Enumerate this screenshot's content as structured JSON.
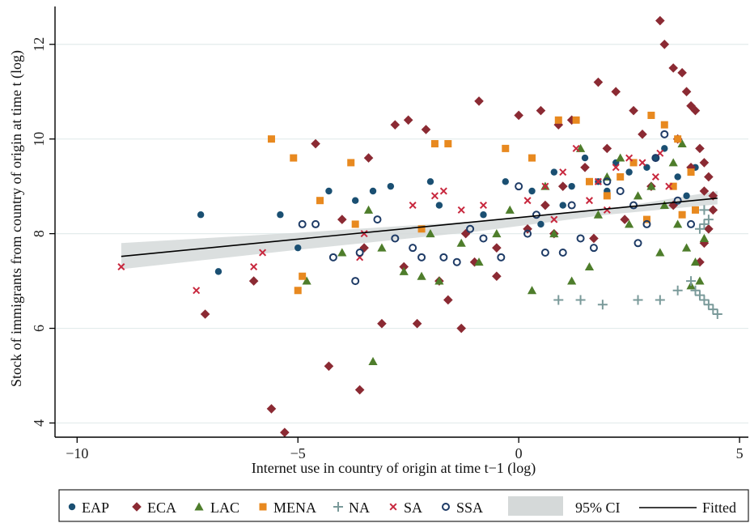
{
  "chart_data": {
    "type": "scatter",
    "title": "",
    "xlabel": "Internet use in country of origin at time t−1 (log)",
    "ylabel": "Stock of immigrants from country of origin at time t (log)",
    "xlim": [
      -10.5,
      5.2
    ],
    "ylim": [
      3.7,
      12.8
    ],
    "x_ticks": [
      -10,
      -5,
      0,
      5
    ],
    "x_tick_labels": [
      "−10",
      "−5",
      "0",
      "5"
    ],
    "y_ticks": [
      4,
      6,
      8,
      10,
      12
    ],
    "y_tick_labels": [
      "4",
      "6",
      "8",
      "10",
      "12"
    ],
    "grid": "horizontal",
    "legend_position": "bottom",
    "colors": {
      "EAP": "#1a4f72",
      "ECA": "#8b2a33",
      "LAC": "#4e7d2b",
      "MENA": "#e8891f",
      "NA": "#7a9a9a",
      "SA": "#c8283e",
      "SSA": "#1e3b66",
      "CI": "#d5d9d9",
      "Fitted": "#000000"
    },
    "series": [
      {
        "name": "EAP",
        "marker": "circle-filled",
        "points": [
          [
            -7.2,
            8.4
          ],
          [
            -6.8,
            7.2
          ],
          [
            -5.4,
            8.4
          ],
          [
            -4.3,
            8.9
          ],
          [
            -3.7,
            8.7
          ],
          [
            -3.3,
            8.9
          ],
          [
            -2.9,
            9.0
          ],
          [
            -2.0,
            9.1
          ],
          [
            -1.8,
            8.6
          ],
          [
            -0.3,
            9.1
          ],
          [
            0.3,
            8.9
          ],
          [
            0.8,
            9.3
          ],
          [
            1.2,
            9.0
          ],
          [
            1.5,
            9.6
          ],
          [
            1.8,
            9.1
          ],
          [
            2.2,
            9.5
          ],
          [
            2.5,
            9.3
          ],
          [
            2.9,
            9.4
          ],
          [
            3.3,
            9.8
          ],
          [
            3.6,
            9.2
          ],
          [
            4.0,
            9.4
          ],
          [
            1.0,
            8.6
          ],
          [
            2.0,
            8.9
          ],
          [
            -5.0,
            7.7
          ],
          [
            3.1,
            9.6
          ],
          [
            3.8,
            8.8
          ],
          [
            -0.8,
            8.4
          ],
          [
            0.5,
            8.2
          ]
        ]
      },
      {
        "name": "ECA",
        "marker": "diamond",
        "points": [
          [
            -7.1,
            6.3
          ],
          [
            -5.6,
            4.3
          ],
          [
            -5.3,
            3.8
          ],
          [
            -4.6,
            9.9
          ],
          [
            -4.3,
            5.2
          ],
          [
            -3.6,
            4.7
          ],
          [
            -3.4,
            9.6
          ],
          [
            -3.1,
            6.1
          ],
          [
            -2.8,
            10.3
          ],
          [
            -2.5,
            10.4
          ],
          [
            -2.3,
            6.1
          ],
          [
            -2.1,
            10.2
          ],
          [
            -1.6,
            6.6
          ],
          [
            -1.3,
            6.0
          ],
          [
            -1.2,
            8.0
          ],
          [
            -0.9,
            10.8
          ],
          [
            -0.5,
            7.1
          ],
          [
            0.0,
            10.5
          ],
          [
            0.5,
            10.6
          ],
          [
            0.9,
            10.3
          ],
          [
            1.2,
            10.4
          ],
          [
            1.8,
            11.2
          ],
          [
            2.2,
            11.0
          ],
          [
            2.6,
            10.6
          ],
          [
            3.2,
            12.5
          ],
          [
            3.3,
            12.0
          ],
          [
            3.5,
            11.5
          ],
          [
            3.7,
            11.4
          ],
          [
            3.8,
            11.0
          ],
          [
            3.9,
            10.7
          ],
          [
            4.0,
            10.6
          ],
          [
            4.1,
            9.8
          ],
          [
            4.2,
            9.5
          ],
          [
            4.3,
            9.2
          ],
          [
            4.4,
            8.8
          ],
          [
            4.4,
            8.5
          ],
          [
            4.3,
            8.1
          ],
          [
            4.2,
            7.8
          ],
          [
            4.1,
            7.4
          ],
          [
            2.8,
            10.1
          ],
          [
            2.0,
            9.8
          ],
          [
            1.5,
            9.4
          ],
          [
            1.0,
            9.0
          ],
          [
            0.6,
            8.6
          ],
          [
            0.2,
            8.1
          ],
          [
            -0.5,
            7.7
          ],
          [
            -1.0,
            7.4
          ],
          [
            -1.8,
            7.0
          ],
          [
            -2.6,
            7.3
          ],
          [
            -3.5,
            7.7
          ],
          [
            3.0,
            9.0
          ],
          [
            3.5,
            8.6
          ],
          [
            3.9,
            9.4
          ],
          [
            4.2,
            8.9
          ],
          [
            3.6,
            10.0
          ],
          [
            2.4,
            8.3
          ],
          [
            1.7,
            7.9
          ],
          [
            -4.0,
            8.3
          ],
          [
            -6.0,
            7.0
          ],
          [
            0.8,
            8.0
          ]
        ]
      },
      {
        "name": "LAC",
        "marker": "triangle",
        "points": [
          [
            -4.8,
            7.0
          ],
          [
            -3.4,
            8.5
          ],
          [
            -3.3,
            5.3
          ],
          [
            -3.1,
            7.7
          ],
          [
            -2.6,
            7.2
          ],
          [
            -2.2,
            7.1
          ],
          [
            -1.8,
            7.0
          ],
          [
            -1.3,
            7.8
          ],
          [
            -0.9,
            7.4
          ],
          [
            -0.5,
            8.0
          ],
          [
            0.3,
            6.8
          ],
          [
            0.8,
            8.0
          ],
          [
            1.2,
            7.0
          ],
          [
            1.6,
            7.3
          ],
          [
            2.0,
            9.2
          ],
          [
            2.3,
            9.6
          ],
          [
            2.7,
            8.8
          ],
          [
            3.0,
            9.0
          ],
          [
            3.3,
            8.6
          ],
          [
            3.6,
            8.2
          ],
          [
            3.8,
            7.7
          ],
          [
            4.0,
            7.4
          ],
          [
            4.1,
            7.0
          ],
          [
            3.9,
            6.9
          ],
          [
            3.5,
            9.5
          ],
          [
            2.5,
            8.2
          ],
          [
            1.8,
            8.4
          ],
          [
            -0.2,
            8.5
          ],
          [
            -2.0,
            8.0
          ],
          [
            -4.0,
            7.6
          ],
          [
            0.6,
            9.0
          ],
          [
            1.4,
            9.8
          ],
          [
            3.7,
            9.9
          ],
          [
            4.2,
            7.9
          ],
          [
            3.2,
            7.6
          ]
        ]
      },
      {
        "name": "MENA",
        "marker": "square",
        "points": [
          [
            -5.6,
            10.0
          ],
          [
            -5.1,
            9.6
          ],
          [
            -5.0,
            6.8
          ],
          [
            -4.9,
            7.1
          ],
          [
            -4.5,
            8.7
          ],
          [
            -3.8,
            9.5
          ],
          [
            -3.7,
            8.2
          ],
          [
            -2.2,
            8.1
          ],
          [
            -1.9,
            9.9
          ],
          [
            -1.6,
            9.9
          ],
          [
            -0.3,
            9.8
          ],
          [
            0.3,
            9.6
          ],
          [
            0.9,
            10.4
          ],
          [
            1.3,
            10.4
          ],
          [
            1.6,
            9.1
          ],
          [
            2.0,
            8.8
          ],
          [
            2.3,
            9.2
          ],
          [
            2.6,
            9.5
          ],
          [
            3.0,
            10.5
          ],
          [
            3.3,
            10.3
          ],
          [
            3.6,
            10.0
          ],
          [
            3.9,
            9.3
          ],
          [
            4.0,
            8.5
          ],
          [
            3.5,
            9.0
          ],
          [
            2.9,
            8.3
          ],
          [
            3.7,
            8.4
          ]
        ]
      },
      {
        "name": "NA",
        "marker": "plus",
        "points": [
          [
            0.9,
            6.6
          ],
          [
            1.4,
            6.6
          ],
          [
            1.9,
            6.5
          ],
          [
            2.7,
            6.6
          ],
          [
            3.2,
            6.6
          ],
          [
            3.6,
            6.8
          ],
          [
            3.9,
            7.0
          ],
          [
            4.0,
            6.8
          ],
          [
            4.1,
            6.7
          ],
          [
            4.2,
            6.6
          ],
          [
            4.3,
            6.5
          ],
          [
            4.4,
            6.4
          ],
          [
            4.5,
            6.3
          ],
          [
            4.2,
            8.2
          ],
          [
            4.1,
            8.1
          ],
          [
            4.3,
            8.3
          ],
          [
            4.2,
            8.5
          ]
        ]
      },
      {
        "name": "SA",
        "marker": "x",
        "points": [
          [
            -9.0,
            7.3
          ],
          [
            -7.3,
            6.8
          ],
          [
            -6.0,
            7.3
          ],
          [
            -5.8,
            7.6
          ],
          [
            -3.5,
            8.0
          ],
          [
            -3.6,
            7.5
          ],
          [
            -2.4,
            8.6
          ],
          [
            -1.9,
            8.8
          ],
          [
            -1.7,
            8.9
          ],
          [
            -1.3,
            8.5
          ],
          [
            -0.8,
            8.6
          ],
          [
            0.2,
            8.7
          ],
          [
            0.6,
            9.0
          ],
          [
            1.0,
            9.3
          ],
          [
            1.3,
            9.8
          ],
          [
            1.8,
            9.1
          ],
          [
            2.2,
            9.4
          ],
          [
            2.5,
            9.6
          ],
          [
            2.8,
            9.5
          ],
          [
            3.1,
            9.2
          ],
          [
            3.4,
            9.0
          ],
          [
            0.8,
            8.3
          ],
          [
            1.6,
            8.7
          ],
          [
            2.0,
            8.5
          ],
          [
            3.2,
            9.7
          ]
        ]
      },
      {
        "name": "SSA",
        "marker": "circle-hollow",
        "points": [
          [
            -4.9,
            8.2
          ],
          [
            -4.6,
            8.2
          ],
          [
            -4.2,
            7.5
          ],
          [
            -3.7,
            7.0
          ],
          [
            -3.6,
            7.6
          ],
          [
            -3.2,
            8.3
          ],
          [
            -2.8,
            7.9
          ],
          [
            -2.4,
            7.7
          ],
          [
            -2.2,
            7.5
          ],
          [
            -1.7,
            7.5
          ],
          [
            -1.4,
            7.4
          ],
          [
            -0.8,
            7.9
          ],
          [
            -0.4,
            7.5
          ],
          [
            0.0,
            9.0
          ],
          [
            0.2,
            8.0
          ],
          [
            0.6,
            7.6
          ],
          [
            1.0,
            7.6
          ],
          [
            1.4,
            7.9
          ],
          [
            1.7,
            7.7
          ],
          [
            2.0,
            9.1
          ],
          [
            2.3,
            8.9
          ],
          [
            2.6,
            8.6
          ],
          [
            2.9,
            8.2
          ],
          [
            3.1,
            9.6
          ],
          [
            3.3,
            10.1
          ],
          [
            3.6,
            8.7
          ],
          [
            3.9,
            8.2
          ],
          [
            1.2,
            8.6
          ],
          [
            2.7,
            7.8
          ],
          [
            0.4,
            8.4
          ],
          [
            -1.1,
            8.1
          ]
        ]
      }
    ],
    "fitted": {
      "name": "Fitted",
      "x": [
        -9.0,
        4.5
      ],
      "y": [
        7.52,
        8.75
      ]
    },
    "ci": {
      "name": "95% CI",
      "x": [
        -9.0,
        -5.0,
        -1.0,
        2.0,
        4.5
      ],
      "lower": [
        7.25,
        7.66,
        8.04,
        8.4,
        8.62
      ],
      "upper": [
        7.8,
        8.02,
        8.26,
        8.52,
        8.9
      ]
    },
    "legend": [
      "EAP",
      "ECA",
      "LAC",
      "MENA",
      "NA",
      "SA",
      "SSA",
      "95% CI",
      "Fitted"
    ]
  }
}
